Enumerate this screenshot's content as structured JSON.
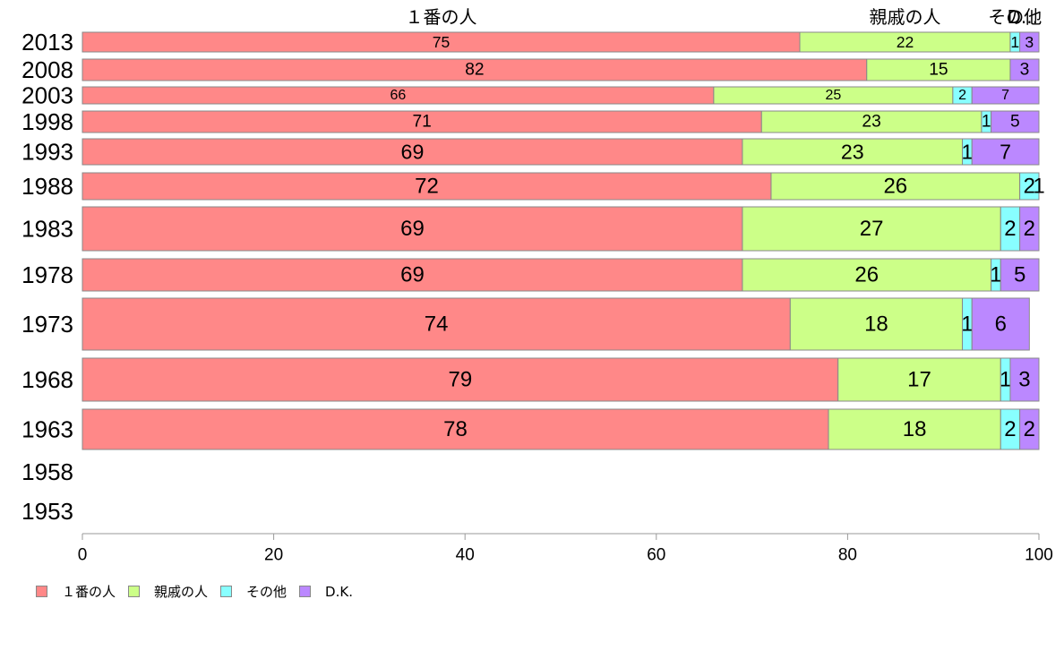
{
  "chart_data": {
    "type": "bar",
    "orientation": "horizontal",
    "stacked": true,
    "categories": [
      "2013",
      "2008",
      "2003",
      "1998",
      "1993",
      "1988",
      "1983",
      "1978",
      "1973",
      "1968",
      "1963",
      "1958",
      "1953"
    ],
    "series": [
      {
        "name": "１番の人",
        "color": "#ff8888",
        "values": [
          75,
          82,
          66,
          71,
          69,
          72,
          69,
          69,
          74,
          79,
          78,
          null,
          null
        ]
      },
      {
        "name": "親戚の人",
        "color": "#ccff88",
        "values": [
          22,
          15,
          25,
          23,
          23,
          26,
          27,
          26,
          18,
          17,
          18,
          null,
          null
        ]
      },
      {
        "name": "その他",
        "color": "#88ffff",
        "values": [
          1,
          null,
          2,
          1,
          1,
          2,
          2,
          1,
          1,
          1,
          2,
          null,
          null
        ]
      },
      {
        "name": "D.K.",
        "color": "#bb88ff",
        "values": [
          3,
          3,
          7,
          5,
          7,
          1,
          2,
          5,
          6,
          3,
          2,
          null,
          null
        ]
      }
    ],
    "top_labels": [
      "１番の人",
      "親戚の人",
      "その他",
      "D..."
    ],
    "xlim": [
      0,
      100
    ],
    "xticks": [
      "0",
      "20",
      "40",
      "60",
      "80",
      "100"
    ],
    "legend_position": "bottom-left",
    "grid": false
  },
  "legend": {
    "items": [
      {
        "label": "１番の人",
        "color": "#ff8888"
      },
      {
        "label": "親戚の人",
        "color": "#ccff88"
      },
      {
        "label": "その他",
        "color": "#88ffff"
      },
      {
        "label": "D.K.",
        "color": "#bb88ff"
      }
    ]
  }
}
